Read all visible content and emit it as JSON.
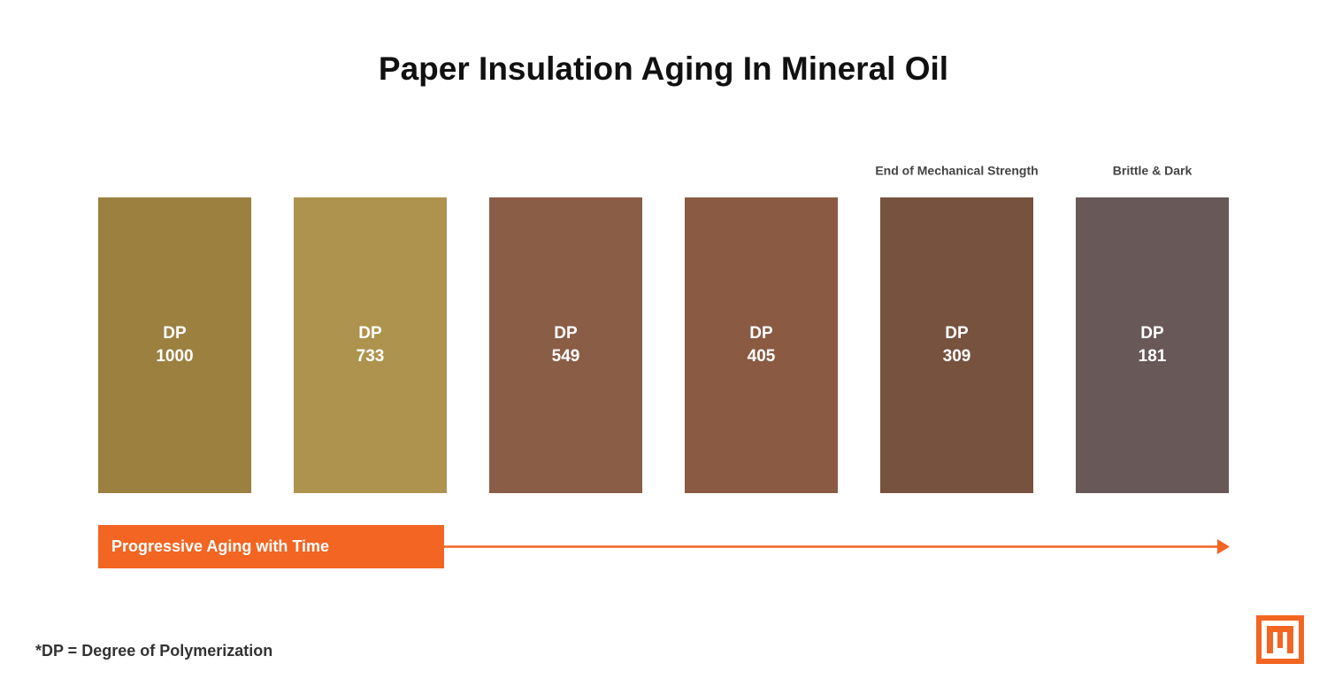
{
  "title": "Paper Insulation Aging In Mineral Oil",
  "swatches": [
    {
      "label": "DP",
      "value": 1000,
      "color": "#9b8040"
    },
    {
      "label": "DP",
      "value": 733,
      "color": "#ad934d"
    },
    {
      "label": "DP",
      "value": 549,
      "color": "#8a5d47"
    },
    {
      "label": "DP",
      "value": 405,
      "color": "#8a5a43"
    },
    {
      "label": "DP",
      "value": 309,
      "color": "#77523f",
      "note": "End of Mechanical Strength"
    },
    {
      "label": "DP",
      "value": 181,
      "color": "#685858",
      "note": "Brittle & Dark"
    }
  ],
  "arrow": {
    "label": "Progressive Aging with Time",
    "color": "#f26522"
  },
  "footnote": "*DP = Degree of Polymerization"
}
